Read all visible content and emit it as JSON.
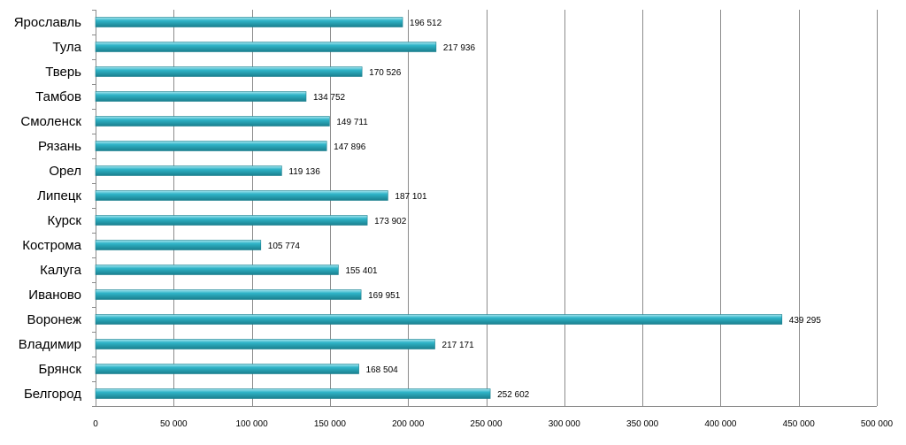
{
  "chart_data": {
    "type": "bar",
    "orientation": "horizontal",
    "categories": [
      "Ярославль",
      "Тула",
      "Тверь",
      "Тамбов",
      "Смоленск",
      "Рязань",
      "Орел",
      "Липецк",
      "Курск",
      "Кострома",
      "Калуга",
      "Иваново",
      "Воронеж",
      "Владимир",
      "Брянск",
      "Белгород"
    ],
    "values": [
      196512,
      217936,
      170526,
      134752,
      149711,
      147896,
      119136,
      187101,
      173902,
      105774,
      155401,
      169951,
      439295,
      217171,
      168504,
      252602
    ],
    "value_labels": [
      "196 512",
      "217 936",
      "170 526",
      "134 752",
      "149 711",
      "147 896",
      "119 136",
      "187 101",
      "173 902",
      "105 774",
      "155 401",
      "169 951",
      "439 295",
      "217 171",
      "168 504",
      "252 602"
    ],
    "xlim": [
      0,
      500000
    ],
    "x_ticks": [
      0,
      50000,
      100000,
      150000,
      200000,
      250000,
      300000,
      350000,
      400000,
      450000,
      500000
    ],
    "x_tick_labels": [
      "0",
      "50 000",
      "100 000",
      "150 000",
      "200 000",
      "250 000",
      "300 000",
      "350 000",
      "400 000",
      "450 000",
      "500 000"
    ],
    "title": "",
    "xlabel": "",
    "ylabel": "",
    "grid": "vertical",
    "legend": "none",
    "bar_color": "#2fb4c8",
    "bar_color_light": "#a8e6ef",
    "bar_color_dark": "#1a7f8e"
  }
}
